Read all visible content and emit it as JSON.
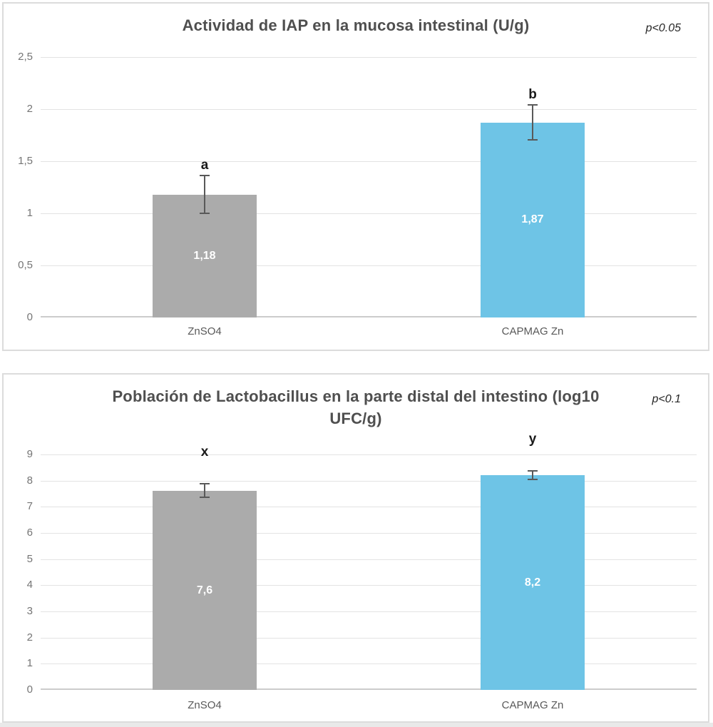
{
  "chart_data": [
    {
      "type": "bar",
      "title": "Actividad de IAP en la mucosa intestinal (U/g)",
      "significance": "p<0.05",
      "categories": [
        "ZnSO4",
        "CAPMAG Zn"
      ],
      "values": [
        1.18,
        1.87
      ],
      "value_labels": [
        "1,18",
        "1,87"
      ],
      "group_letters": [
        "a",
        "b"
      ],
      "error_plus": [
        0.19,
        0.18
      ],
      "error_minus": [
        0.19,
        0.17
      ],
      "y_min": 0,
      "y_max": 2.5,
      "y_tick_labels": [
        "0",
        "0,5",
        "1",
        "1,5",
        "2",
        "2,5"
      ],
      "bar_colors": [
        "#ababab",
        "#6ec4e6"
      ],
      "value_label_color": "#ffffff",
      "grid": "horizontal",
      "legend": "none",
      "xlabel": "",
      "ylabel": ""
    },
    {
      "type": "bar",
      "title": "Población de Lactobacillus en la parte distal del intestino (log10\nUFC/g)",
      "significance": "p<0.1",
      "categories": [
        "ZnSO4",
        "CAPMAG Zn"
      ],
      "values": [
        7.6,
        8.2
      ],
      "value_labels": [
        "7,6",
        "8,2"
      ],
      "group_letters": [
        "x",
        "y"
      ],
      "error_plus": [
        0.3,
        0.2
      ],
      "error_minus": [
        0.27,
        0.19
      ],
      "y_min": 0,
      "y_max": 9,
      "y_tick_labels": [
        "0",
        "1",
        "2",
        "3",
        "4",
        "5",
        "6",
        "7",
        "8",
        "9"
      ],
      "bar_colors": [
        "#ababab",
        "#6ec4e6"
      ],
      "value_label_color": "#ffffff",
      "grid": "horizontal",
      "legend": "none",
      "xlabel": "",
      "ylabel": ""
    }
  ]
}
